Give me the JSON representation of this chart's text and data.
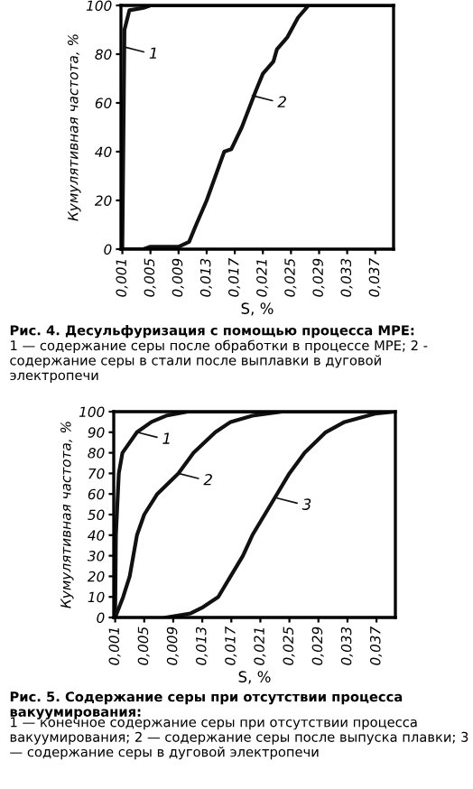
{
  "chart_data": [
    {
      "type": "line",
      "xlabel": "S, %",
      "ylabel": "Кумулятивная частота, %",
      "series": [
        {
          "color": "#111111",
          "x": [
            0.0008,
            0.001,
            0.0012,
            0.0013,
            0.002,
            0.004,
            0.005,
            0.0396
          ],
          "values": [
            0,
            0,
            60,
            90,
            98,
            99,
            100,
            100
          ]
        },
        {
          "color": "#111111",
          "x": [
            0.0008,
            0.004,
            0.005,
            0.009,
            0.0105,
            0.0115,
            0.013,
            0.0155,
            0.0165,
            0.018,
            0.02,
            0.021,
            0.0225,
            0.023,
            0.0245,
            0.026,
            0.0275,
            0.0396
          ],
          "values": [
            0,
            0,
            1,
            1,
            3,
            10,
            20,
            40,
            41,
            50,
            65,
            72,
            77,
            82,
            87,
            95,
            100,
            100
          ]
        }
      ],
      "xlim": [
        0.0008,
        0.0396
      ],
      "ylim": [
        0,
        100
      ],
      "xticks": [
        {
          "value": 0.001,
          "label": "0,001"
        },
        {
          "value": 0.005,
          "label": "0,005"
        },
        {
          "value": 0.009,
          "label": "0,009"
        },
        {
          "value": 0.013,
          "label": "0,013"
        },
        {
          "value": 0.017,
          "label": "0,017"
        },
        {
          "value": 0.021,
          "label": "0,021"
        },
        {
          "value": 0.025,
          "label": "0,025"
        },
        {
          "value": 0.029,
          "label": "0,029"
        },
        {
          "value": 0.033,
          "label": "0,033"
        },
        {
          "value": 0.037,
          "label": "0,037"
        }
      ],
      "yticks": [
        0,
        20,
        40,
        60,
        80,
        100
      ],
      "grid": false,
      "legend": false,
      "marker": "none",
      "line_style": "solid",
      "annotations": [
        {
          "text": "1",
          "x": 0.0012,
          "y": 83
        },
        {
          "text": "2",
          "x": 0.0195,
          "y": 63
        },
        "Рис. 4. Десульфуризация с помощью процесса МРЕ:",
        "1 — содержание серы после обработки в процессе МРЕ; 2 - содержание серы в стали после выплавки в дуговой электропечи"
      ]
    },
    {
      "type": "line",
      "xlabel": "S, %",
      "ylabel": "Кумулятивная частота, %",
      "series": [
        {
          "color": "#111111",
          "x": [
            0.0008,
            0.001,
            0.0011,
            0.0015,
            0.002,
            0.004,
            0.006,
            0.008,
            0.011,
            0.0396
          ],
          "values": [
            0,
            0,
            40,
            70,
            80,
            90,
            95,
            98,
            100,
            100
          ]
        },
        {
          "color": "#111111",
          "x": [
            0.001,
            0.0021,
            0.003,
            0.004,
            0.005,
            0.0068,
            0.0097,
            0.0118,
            0.0148,
            0.0169,
            0.0199,
            0.024,
            0.0396
          ],
          "values": [
            0,
            10,
            20,
            40,
            50,
            60,
            70,
            80,
            90,
            95,
            98,
            100,
            100
          ]
        },
        {
          "color": "#111111",
          "x": [
            0.008,
            0.0114,
            0.0131,
            0.0152,
            0.0169,
            0.0186,
            0.0199,
            0.0216,
            0.0233,
            0.025,
            0.0271,
            0.03,
            0.0326,
            0.0368,
            0.0396
          ],
          "values": [
            0,
            2,
            5,
            10,
            20,
            30,
            40,
            50,
            60,
            70,
            80,
            90,
            95,
            99,
            100
          ]
        }
      ],
      "xlim": [
        0.0008,
        0.0396
      ],
      "ylim": [
        0,
        100
      ],
      "xticks": [
        {
          "value": 0.001,
          "label": "0,001"
        },
        {
          "value": 0.005,
          "label": "0,005"
        },
        {
          "value": 0.009,
          "label": "0,009"
        },
        {
          "value": 0.013,
          "label": "0,013"
        },
        {
          "value": 0.017,
          "label": "0,017"
        },
        {
          "value": 0.021,
          "label": "0,021"
        },
        {
          "value": 0.025,
          "label": "0,025"
        },
        {
          "value": 0.029,
          "label": "0,029"
        },
        {
          "value": 0.033,
          "label": "0,033"
        },
        {
          "value": 0.037,
          "label": "0,037"
        }
      ],
      "yticks": [
        0,
        10,
        20,
        30,
        40,
        50,
        60,
        70,
        80,
        90,
        100
      ],
      "grid": false,
      "legend": false,
      "marker": "none",
      "line_style": "solid",
      "annotations": [
        {
          "text": "1",
          "x": 0.004,
          "y": 90
        },
        {
          "text": "2",
          "x": 0.0097,
          "y": 70
        },
        {
          "text": "3",
          "x": 0.0233,
          "y": 58
        },
        "Рис. 5. Содержание серы при отсутствии процесса вакуумирования:",
        "1 — конечное содержание серы при отсутствии процесса вакуумирования; 2 — содержание серы после выпуска плавки; 3 — содержание серы в дуговой электропечи"
      ]
    }
  ]
}
